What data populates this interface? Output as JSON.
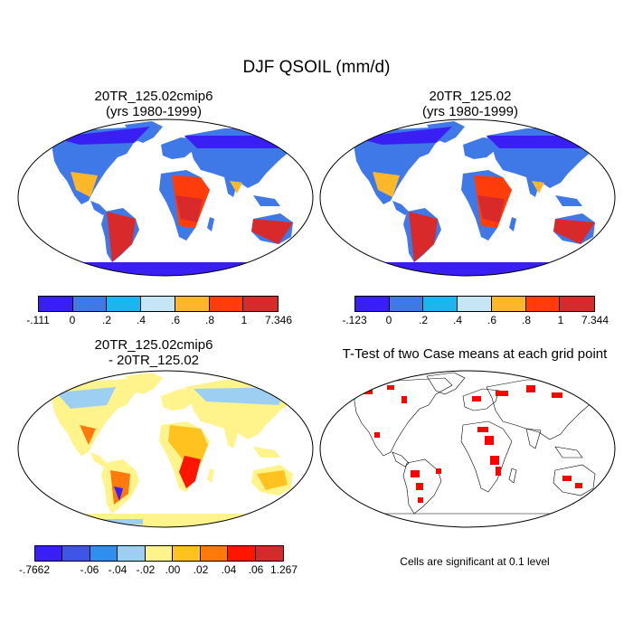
{
  "figure": {
    "title": "DJF QSOIL (mm/d)"
  },
  "panels": {
    "top_left": {
      "title_line1": "20TR_125.02cmip6",
      "title_line2": "(yrs 1980-1999)",
      "colorbar": {
        "colors": [
          "#3a1ff5",
          "#3f79e8",
          "#19b6ef",
          "#c6e5f5",
          "#ffb72a",
          "#ff3d0a",
          "#d82a2a"
        ],
        "labels": [
          "-.111",
          "0",
          ".2",
          ".4",
          ".6",
          ".8",
          "1",
          "7.346"
        ]
      }
    },
    "top_right": {
      "title_line1": "20TR_125.02",
      "title_line2": "(yrs 1980-1999)",
      "colorbar": {
        "colors": [
          "#3a1ff5",
          "#3f79e8",
          "#19b6ef",
          "#c6e5f5",
          "#ffb72a",
          "#ff3d0a",
          "#d82a2a"
        ],
        "labels": [
          "-.123",
          "0",
          ".2",
          ".4",
          ".6",
          ".8",
          "1",
          "7.344"
        ]
      }
    },
    "bottom_left": {
      "title_line1": "20TR_125.02cmip6",
      "title_line2": "- 20TR_125.02",
      "colorbar": {
        "colors": [
          "#3a1ff5",
          "#3f55e8",
          "#2f8ff0",
          "#9ccff2",
          "#fff38c",
          "#ffc21f",
          "#ff7a0a",
          "#ff1500",
          "#d42a2a"
        ],
        "labels": [
          "-.7662",
          "-.06",
          "-.04",
          "-.02",
          ".00",
          ".02",
          ".04",
          ".06",
          "1.267"
        ]
      }
    },
    "bottom_right": {
      "title": "T-Test of two Case means at each grid point",
      "note": "Cells are significant at 0.1 level",
      "significant_color": "#ff0000"
    }
  }
}
